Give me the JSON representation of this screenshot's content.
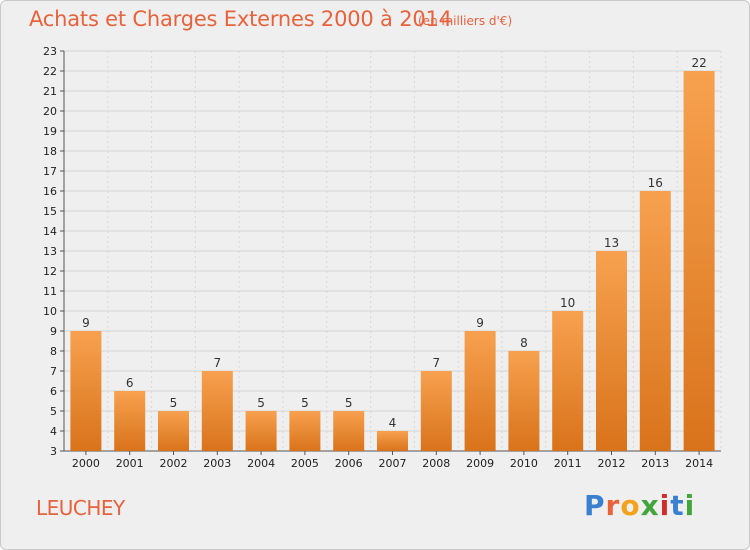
{
  "header": {
    "title": "Achats et Charges Externes 2000 à 2014",
    "subtitle": "(en milliers d'€)"
  },
  "footer": {
    "commune": "LEUCHEY",
    "logo": "Proxiti"
  },
  "colors": {
    "bar_light": "#f7a14f",
    "bar_dark": "#d9731b",
    "title": "#e8623c",
    "grid": "#d6d6d6",
    "logo_letters": [
      "#3b7fd0",
      "#e8623c",
      "#f2a21b",
      "#41a53c",
      "#d02c2c",
      "#3b7fd0",
      "#41a53c"
    ]
  },
  "chart_data": {
    "type": "bar",
    "categories": [
      "2000",
      "2001",
      "2002",
      "2003",
      "2004",
      "2005",
      "2006",
      "2007",
      "2008",
      "2009",
      "2010",
      "2011",
      "2012",
      "2013",
      "2014"
    ],
    "values": [
      9,
      6,
      5,
      7,
      5,
      5,
      5,
      4,
      7,
      9,
      8,
      10,
      13,
      16,
      22
    ],
    "ylim": [
      3,
      23
    ],
    "yticks": [
      3,
      4,
      5,
      6,
      7,
      8,
      9,
      10,
      11,
      12,
      13,
      14,
      15,
      16,
      17,
      18,
      19,
      20,
      21,
      22,
      23
    ],
    "grid": true,
    "data_labels": true
  }
}
